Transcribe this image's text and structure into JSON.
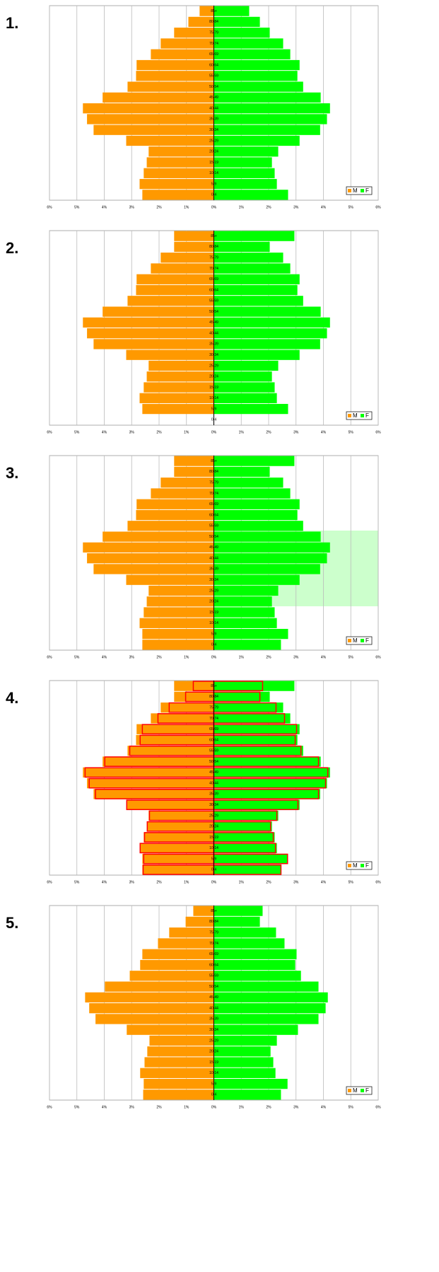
{
  "chart_data": [
    {
      "type": "bar",
      "orientation": "horizontal",
      "title": "1.",
      "categories": [
        "85+",
        "80-84",
        "75-79",
        "70-74",
        "65-69",
        "60-64",
        "55-59",
        "50-54",
        "45-49",
        "40-44",
        "35-39",
        "30-34",
        "25-29",
        "20-24",
        "15-19",
        "10-14",
        "5-9",
        "0-4"
      ],
      "series": [
        {
          "name": "M",
          "color": "#ff9900",
          "values": [
            -0.52,
            -0.93,
            -1.45,
            -1.94,
            -2.3,
            -2.82,
            -2.84,
            -3.15,
            -4.06,
            -4.78,
            -4.63,
            -4.39,
            -3.2,
            -2.38,
            -2.45,
            -2.56,
            -2.71,
            -2.61
          ]
        },
        {
          "name": "F",
          "color": "#00ff00",
          "values": [
            1.29,
            1.68,
            2.04,
            2.53,
            2.79,
            3.13,
            3.05,
            3.26,
            3.9,
            4.24,
            4.13,
            3.88,
            3.13,
            2.35,
            2.12,
            2.22,
            2.3,
            2.71
          ]
        }
      ],
      "xlim": [
        -6,
        6
      ],
      "xticks": [
        {
          "value": -6,
          "label": "6%"
        },
        {
          "value": -5,
          "label": "5%"
        },
        {
          "value": -4,
          "label": "4%"
        },
        {
          "value": -3,
          "label": "3%"
        },
        {
          "value": -2,
          "label": "2%"
        },
        {
          "value": -1,
          "label": "1%"
        },
        {
          "value": 0,
          "label": "0%"
        },
        {
          "value": 1,
          "label": "1%"
        },
        {
          "value": 2,
          "label": "2%"
        },
        {
          "value": 3,
          "label": "3%"
        },
        {
          "value": 4,
          "label": "4%"
        },
        {
          "value": 5,
          "label": "5%"
        },
        {
          "value": 6,
          "label": "6%"
        }
      ],
      "grid": true,
      "legend": "lower right"
    },
    {
      "type": "bar",
      "orientation": "horizontal",
      "title": "2.",
      "categories": [
        "85+",
        "80-84",
        "75-79",
        "70-74",
        "65-69",
        "60-64",
        "55-59",
        "50-54",
        "45-49",
        "40-44",
        "35-39",
        "30-34",
        "25-29",
        "20-24",
        "15-19",
        "10-14",
        "5-9",
        "0-4"
      ],
      "series": [
        {
          "name": "M",
          "color": "#ff9900",
          "values": [
            -1.45,
            -1.45,
            -1.94,
            -2.3,
            -2.82,
            -2.84,
            -3.15,
            -4.06,
            -4.78,
            -4.63,
            -4.39,
            -3.2,
            -2.38,
            -2.45,
            -2.56,
            -2.71,
            -2.61,
            null
          ]
        },
        {
          "name": "F",
          "color": "#00ff00",
          "values": [
            2.94,
            2.04,
            2.53,
            2.79,
            3.13,
            3.05,
            3.26,
            3.9,
            4.24,
            4.13,
            3.88,
            3.13,
            2.35,
            2.12,
            2.22,
            2.3,
            2.71,
            null
          ]
        }
      ],
      "xlim": [
        -6,
        6
      ],
      "xticks": [
        {
          "value": -6,
          "label": "6%"
        },
        {
          "value": -5,
          "label": "5%"
        },
        {
          "value": -4,
          "label": "4%"
        },
        {
          "value": -3,
          "label": "3%"
        },
        {
          "value": -2,
          "label": "2%"
        },
        {
          "value": -1,
          "label": "1%"
        },
        {
          "value": 0,
          "label": "0%"
        },
        {
          "value": 1,
          "label": "1%"
        },
        {
          "value": 2,
          "label": "2%"
        },
        {
          "value": 3,
          "label": "3%"
        },
        {
          "value": 4,
          "label": "4%"
        },
        {
          "value": 5,
          "label": "5%"
        },
        {
          "value": 6,
          "label": "6%"
        }
      ],
      "grid": true,
      "legend": "lower right"
    },
    {
      "type": "bar",
      "orientation": "horizontal",
      "title": "3.",
      "categories": [
        "85+",
        "80-84",
        "75-79",
        "70-74",
        "65-69",
        "60-64",
        "55-59",
        "50-54",
        "45-49",
        "40-44",
        "35-39",
        "30-34",
        "25-29",
        "20-24",
        "15-19",
        "10-14",
        "5-9",
        "0-4"
      ],
      "series": [
        {
          "name": "M",
          "color": "#ff9900",
          "values": [
            -1.45,
            -1.45,
            -1.94,
            -2.3,
            -2.82,
            -2.84,
            -3.15,
            -4.06,
            -4.78,
            -4.63,
            -4.39,
            -3.2,
            -2.38,
            -2.45,
            -2.56,
            -2.71,
            -2.61,
            -2.61
          ]
        },
        {
          "name": "F",
          "color": "#00ff00",
          "values": [
            2.94,
            2.04,
            2.53,
            2.79,
            3.13,
            3.05,
            3.26,
            3.9,
            4.24,
            4.13,
            3.88,
            3.13,
            2.35,
            2.12,
            2.22,
            2.3,
            2.71,
            2.45
          ]
        }
      ],
      "xlim": [
        -6,
        6
      ],
      "xticks": [
        {
          "value": -6,
          "label": "6%"
        },
        {
          "value": -5,
          "label": "5%"
        },
        {
          "value": -4,
          "label": "4%"
        },
        {
          "value": -3,
          "label": "3%"
        },
        {
          "value": -2,
          "label": "2%"
        },
        {
          "value": -1,
          "label": "1%"
        },
        {
          "value": 0,
          "label": "0%"
        },
        {
          "value": 1,
          "label": "1%"
        },
        {
          "value": 2,
          "label": "2%"
        },
        {
          "value": 3,
          "label": "3%"
        },
        {
          "value": 4,
          "label": "4%"
        },
        {
          "value": 5,
          "label": "5%"
        },
        {
          "value": 6,
          "label": "6%"
        }
      ],
      "grid": true,
      "legend": "lower right"
    },
    {
      "type": "bar",
      "orientation": "horizontal",
      "title": "4.",
      "categories": [
        "85+",
        "80-84",
        "75-79",
        "70-74",
        "65-69",
        "60-64",
        "55-59",
        "50-54",
        "45-49",
        "40-44",
        "35-39",
        "30-34",
        "25-29",
        "20-24",
        "15-19",
        "10-14",
        "5-9",
        "0-4"
      ],
      "series": [
        {
          "name": "M",
          "color": "#ff9900",
          "values": [
            -1.45,
            -1.45,
            -1.94,
            -2.3,
            -2.82,
            -2.84,
            -3.15,
            -4.06,
            -4.78,
            -4.63,
            -4.39,
            -3.2,
            -2.38,
            -2.45,
            -2.56,
            -2.71,
            -2.61,
            -2.61
          ]
        },
        {
          "name": "F",
          "color": "#00ff00",
          "values": [
            2.94,
            2.04,
            2.53,
            2.79,
            3.13,
            3.05,
            3.26,
            3.9,
            4.24,
            4.13,
            3.88,
            3.13,
            2.35,
            2.12,
            2.22,
            2.3,
            2.71,
            2.45
          ]
        },
        {
          "color": "#ff9900",
          "edge": "#ff0000",
          "values": [
            -0.75,
            -1.03,
            -1.63,
            -2.04,
            -2.61,
            -2.69,
            -3.07,
            -3.98,
            -4.7,
            -4.55,
            -4.32,
            -3.18,
            -2.35,
            -2.43,
            -2.53,
            -2.69,
            -2.56,
            -2.58
          ]
        },
        {
          "color": "#00ff00",
          "edge": "#ff0000",
          "values": [
            1.78,
            1.68,
            2.27,
            2.58,
            3.02,
            2.97,
            3.18,
            3.82,
            4.16,
            4.08,
            3.82,
            3.07,
            2.3,
            2.07,
            2.17,
            2.25,
            2.69,
            2.45
          ]
        }
      ],
      "xlim": [
        -6,
        6
      ],
      "xticks": [
        {
          "value": -6,
          "label": "6%"
        },
        {
          "value": -5,
          "label": "5%"
        },
        {
          "value": -4,
          "label": "4%"
        },
        {
          "value": -3,
          "label": "3%"
        },
        {
          "value": -2,
          "label": "2%"
        },
        {
          "value": -1,
          "label": "1%"
        },
        {
          "value": 0,
          "label": "0%"
        },
        {
          "value": 1,
          "label": "1%"
        },
        {
          "value": 2,
          "label": "2%"
        },
        {
          "value": 3,
          "label": "3%"
        },
        {
          "value": 4,
          "label": "4%"
        },
        {
          "value": 5,
          "label": "5%"
        },
        {
          "value": 6,
          "label": "6%"
        }
      ],
      "grid": true,
      "legend": "lower right"
    },
    {
      "type": "bar",
      "orientation": "horizontal",
      "title": "5.",
      "categories": [
        "85+",
        "80-84",
        "75-79",
        "70-74",
        "65-69",
        "60-64",
        "55-59",
        "50-54",
        "45-49",
        "40-44",
        "35-39",
        "30-34",
        "25-29",
        "20-24",
        "15-19",
        "10-14",
        "5-9",
        "0-4"
      ],
      "series": [
        {
          "name": "M",
          "color": "#ff9900",
          "values": [
            -0.75,
            -1.03,
            -1.63,
            -2.04,
            -2.61,
            -2.69,
            -3.07,
            -3.98,
            -4.7,
            -4.55,
            -4.32,
            -3.18,
            -2.35,
            -2.43,
            -2.53,
            -2.69,
            -2.56,
            -2.58
          ]
        },
        {
          "name": "F",
          "color": "#00ff00",
          "values": [
            1.78,
            1.68,
            2.27,
            2.58,
            3.02,
            2.97,
            3.18,
            3.82,
            4.16,
            4.08,
            3.82,
            3.07,
            2.3,
            2.07,
            2.17,
            2.25,
            2.69,
            2.45
          ]
        }
      ],
      "xlim": [
        -6,
        6
      ],
      "xticks": [
        {
          "value": -6,
          "label": "6%"
        },
        {
          "value": -5,
          "label": "5%"
        },
        {
          "value": -4,
          "label": "4%"
        },
        {
          "value": -3,
          "label": "3%"
        },
        {
          "value": -2,
          "label": "2%"
        },
        {
          "value": -1,
          "label": "1%"
        },
        {
          "value": 0,
          "label": "0%"
        },
        {
          "value": 1,
          "label": "1%"
        },
        {
          "value": 2,
          "label": "2%"
        },
        {
          "value": 3,
          "label": "3%"
        },
        {
          "value": 4,
          "label": "4%"
        },
        {
          "value": 5,
          "label": "5%"
        },
        {
          "value": 6,
          "label": "6%"
        }
      ],
      "grid": true,
      "legend": "lower right"
    }
  ]
}
